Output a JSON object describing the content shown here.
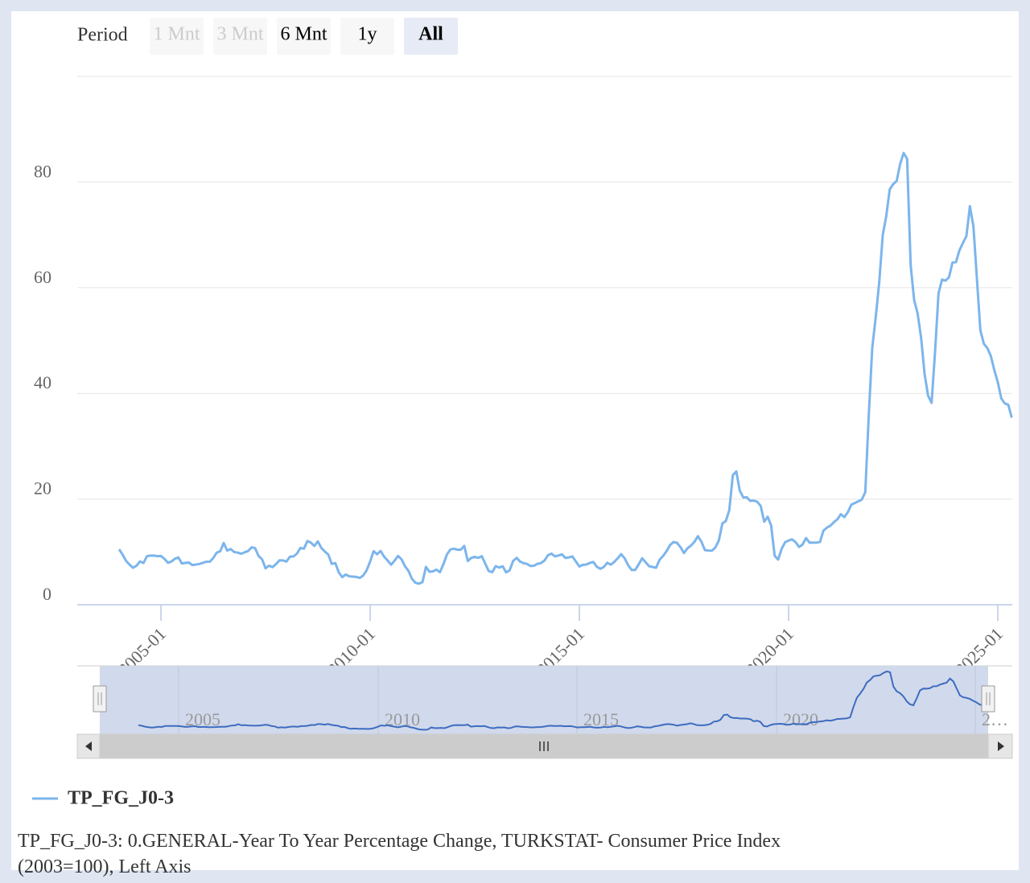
{
  "chart_data": {
    "type": "line",
    "range_selector": {
      "label": "Period",
      "buttons": [
        "1 Mnt",
        "3 Mnt",
        "6 Mnt",
        "1y",
        "All"
      ]
    },
    "x": [
      "2004-01",
      "2004-02",
      "2004-03",
      "2004-04",
      "2004-05",
      "2004-06",
      "2004-07",
      "2004-08",
      "2004-09",
      "2004-10",
      "2004-11",
      "2004-12",
      "2005-01",
      "2005-02",
      "2005-03",
      "2005-04",
      "2005-05",
      "2005-06",
      "2005-07",
      "2005-08",
      "2005-09",
      "2005-10",
      "2005-11",
      "2005-12",
      "2006-01",
      "2006-02",
      "2006-03",
      "2006-04",
      "2006-05",
      "2006-06",
      "2006-07",
      "2006-08",
      "2006-09",
      "2006-10",
      "2006-11",
      "2006-12",
      "2007-01",
      "2007-02",
      "2007-03",
      "2007-04",
      "2007-05",
      "2007-06",
      "2007-07",
      "2007-08",
      "2007-09",
      "2007-10",
      "2007-11",
      "2007-12",
      "2008-01",
      "2008-02",
      "2008-03",
      "2008-04",
      "2008-05",
      "2008-06",
      "2008-07",
      "2008-08",
      "2008-09",
      "2008-10",
      "2008-11",
      "2008-12",
      "2009-01",
      "2009-02",
      "2009-03",
      "2009-04",
      "2009-05",
      "2009-06",
      "2009-07",
      "2009-08",
      "2009-09",
      "2009-10",
      "2009-11",
      "2009-12",
      "2010-01",
      "2010-02",
      "2010-03",
      "2010-04",
      "2010-05",
      "2010-06",
      "2010-07",
      "2010-08",
      "2010-09",
      "2010-10",
      "2010-11",
      "2010-12",
      "2011-01",
      "2011-02",
      "2011-03",
      "2011-04",
      "2011-05",
      "2011-06",
      "2011-07",
      "2011-08",
      "2011-09",
      "2011-10",
      "2011-11",
      "2011-12",
      "2012-01",
      "2012-02",
      "2012-03",
      "2012-04",
      "2012-05",
      "2012-06",
      "2012-07",
      "2012-08",
      "2012-09",
      "2012-10",
      "2012-11",
      "2012-12",
      "2013-01",
      "2013-02",
      "2013-03",
      "2013-04",
      "2013-05",
      "2013-06",
      "2013-07",
      "2013-08",
      "2013-09",
      "2013-10",
      "2013-11",
      "2013-12",
      "2014-01",
      "2014-02",
      "2014-03",
      "2014-04",
      "2014-05",
      "2014-06",
      "2014-07",
      "2014-08",
      "2014-09",
      "2014-10",
      "2014-11",
      "2014-12",
      "2015-01",
      "2015-02",
      "2015-03",
      "2015-04",
      "2015-05",
      "2015-06",
      "2015-07",
      "2015-08",
      "2015-09",
      "2015-10",
      "2015-11",
      "2015-12",
      "2016-01",
      "2016-02",
      "2016-03",
      "2016-04",
      "2016-05",
      "2016-06",
      "2016-07",
      "2016-08",
      "2016-09",
      "2016-10",
      "2016-11",
      "2016-12",
      "2017-01",
      "2017-02",
      "2017-03",
      "2017-04",
      "2017-05",
      "2017-06",
      "2017-07",
      "2017-08",
      "2017-09",
      "2017-10",
      "2017-11",
      "2017-12",
      "2018-01",
      "2018-02",
      "2018-03",
      "2018-04",
      "2018-05",
      "2018-06",
      "2018-07",
      "2018-08",
      "2018-09",
      "2018-10",
      "2018-11",
      "2018-12",
      "2019-01",
      "2019-02",
      "2019-03",
      "2019-04",
      "2019-05",
      "2019-06",
      "2019-07",
      "2019-08",
      "2019-09",
      "2019-10",
      "2019-11",
      "2019-12",
      "2020-01",
      "2020-02",
      "2020-03",
      "2020-04",
      "2020-05",
      "2020-06",
      "2020-07",
      "2020-08",
      "2020-09",
      "2020-10",
      "2020-11",
      "2020-12",
      "2021-01",
      "2021-02",
      "2021-03",
      "2021-04",
      "2021-05",
      "2021-06",
      "2021-07",
      "2021-08",
      "2021-09",
      "2021-10",
      "2021-11",
      "2021-12",
      "2022-01",
      "2022-02",
      "2022-03",
      "2022-04",
      "2022-05",
      "2022-06",
      "2022-07",
      "2022-08",
      "2022-09",
      "2022-10",
      "2022-11",
      "2022-12",
      "2023-01",
      "2023-02",
      "2023-03",
      "2023-04",
      "2023-05",
      "2023-06",
      "2023-07",
      "2023-08",
      "2023-09",
      "2023-10",
      "2023-11",
      "2023-12",
      "2024-01",
      "2024-02",
      "2024-03",
      "2024-04",
      "2024-05",
      "2024-06",
      "2024-07",
      "2024-08",
      "2024-09",
      "2024-10",
      "2024-11",
      "2024-12",
      "2025-01",
      "2025-02",
      "2025-03",
      "2025-04",
      "2025-05"
    ],
    "series": [
      {
        "name": "TP_FG_J0-3",
        "color": "#7cb5ec",
        "values": [
          10.5,
          9.5,
          8.3,
          7.6,
          7.0,
          7.4,
          8.2,
          7.9,
          9.2,
          9.3,
          9.3,
          9.2,
          9.24,
          8.69,
          7.94,
          8.18,
          8.7,
          8.95,
          7.82,
          7.91,
          7.99,
          7.52,
          7.61,
          7.72,
          7.93,
          8.15,
          8.16,
          8.83,
          9.86,
          10.12,
          11.69,
          10.26,
          10.55,
          9.98,
          9.86,
          9.65,
          9.93,
          10.16,
          10.86,
          10.72,
          9.23,
          8.6,
          6.9,
          7.39,
          7.12,
          7.7,
          8.4,
          8.39,
          8.17,
          9.1,
          9.15,
          9.66,
          10.74,
          10.61,
          12.06,
          11.77,
          11.13,
          11.99,
          10.76,
          10.06,
          9.5,
          7.73,
          7.89,
          6.13,
          5.24,
          5.73,
          5.39,
          5.33,
          5.27,
          5.08,
          5.53,
          6.53,
          8.19,
          10.13,
          9.56,
          10.19,
          9.1,
          8.37,
          7.58,
          8.33,
          9.24,
          8.62,
          7.29,
          6.4,
          4.9,
          4.16,
          3.99,
          4.26,
          7.17,
          6.24,
          6.31,
          6.65,
          6.15,
          7.66,
          9.48,
          10.45,
          10.61,
          10.43,
          10.43,
          11.14,
          8.28,
          8.87,
          9.07,
          8.88,
          9.19,
          7.8,
          6.37,
          6.16,
          7.31,
          7.03,
          7.29,
          6.13,
          6.51,
          8.3,
          8.88,
          8.17,
          7.88,
          7.71,
          7.32,
          7.4,
          7.75,
          7.89,
          8.39,
          9.38,
          9.66,
          9.16,
          9.32,
          9.54,
          8.86,
          8.96,
          9.15,
          8.17,
          7.24,
          7.55,
          7.61,
          7.91,
          8.09,
          7.2,
          6.81,
          7.14,
          7.95,
          7.58,
          8.1,
          8.81,
          9.58,
          8.78,
          7.46,
          6.57,
          6.58,
          7.64,
          8.79,
          8.05,
          7.28,
          7.16,
          7.0,
          8.53,
          9.22,
          10.13,
          11.29,
          11.87,
          11.72,
          10.9,
          9.79,
          10.68,
          11.2,
          11.9,
          12.98,
          11.92,
          10.35,
          10.26,
          10.23,
          10.85,
          12.15,
          15.39,
          15.85,
          17.9,
          24.52,
          25.24,
          21.62,
          20.3,
          20.35,
          19.67,
          19.71,
          19.5,
          18.71,
          15.72,
          16.65,
          15.01,
          9.26,
          8.55,
          10.56,
          11.84,
          12.15,
          12.37,
          11.86,
          10.94,
          11.39,
          12.62,
          11.76,
          11.77,
          11.75,
          11.89,
          14.03,
          14.6,
          14.97,
          15.61,
          16.19,
          17.14,
          16.59,
          17.53,
          18.95,
          19.25,
          19.58,
          19.89,
          21.31,
          36.08,
          48.69,
          54.44,
          61.14,
          69.97,
          73.5,
          78.62,
          79.6,
          80.21,
          83.45,
          85.51,
          84.39,
          64.27,
          57.68,
          55.18,
          50.51,
          43.68,
          39.59,
          38.21,
          47.83,
          58.94,
          61.53,
          61.36,
          61.98,
          64.77,
          64.86,
          67.07,
          68.5,
          69.8,
          75.45,
          71.6,
          61.78,
          51.97,
          49.38,
          48.58,
          47.09,
          44.38,
          42.12,
          39.05,
          38.1,
          37.86,
          35.41
        ]
      }
    ],
    "ylim": [
      0,
      100
    ],
    "yticks": [
      0,
      20,
      40,
      60,
      80
    ],
    "xticks": [
      "2005-01",
      "2010-01",
      "2015-01",
      "2020-01",
      "2025-01"
    ],
    "grid": true,
    "navigator": {
      "labels": [
        "2005",
        "2010",
        "2015",
        "2020",
        "2…"
      ]
    },
    "caption": "TP_FG_J0-3: 0.GENERAL-Year To Year Percentage Change, TURKSTAT- Consumer Price Index (2003=100), Left Axis"
  }
}
